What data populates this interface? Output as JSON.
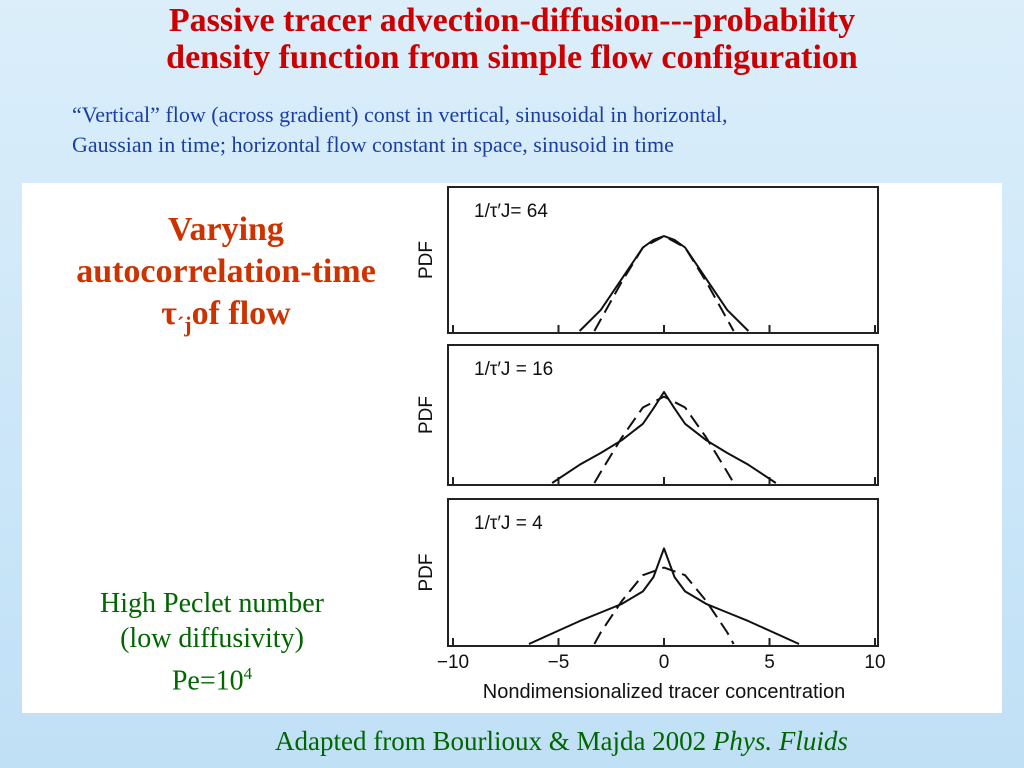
{
  "slide": {
    "title_line1": "Passive tracer advection-diffusion---probability",
    "title_line2": "density function from simple flow configuration",
    "subtitle_line1": "“Vertical” flow (across gradient) const in vertical, sinusoidal in horizontal,",
    "subtitle_line2": "Gaussian in time; horizontal flow constant in space, sinusoid in time",
    "left_heading_line1": "Varying",
    "left_heading_line2": "autocorrelation-time",
    "left_heading_tau": "τ",
    "left_heading_sub": "´j",
    "left_heading_tail": "of flow",
    "note_line1": "High Peclet number",
    "note_line2": "(low diffusivity)",
    "note_line3_base": "Pe=10",
    "note_line3_exp": "4",
    "footer_text": "Adapted from Bourlioux & Majda 2002 ",
    "footer_italic": "Phys. Fluids"
  },
  "chart_data": {
    "type": "line",
    "xlabel": "Nondimensionalized tracer concentration",
    "ylabel": "PDF",
    "xlim": [
      -10,
      10
    ],
    "xticks": [
      -10,
      -5,
      0,
      5,
      10
    ],
    "panels": [
      {
        "label": "1/τ′J= 64",
        "series": [
          {
            "style": "solid",
            "x": [
              -4,
              -3,
              -2,
              -1,
              -0.5,
              0,
              0.5,
              1,
              2,
              3,
              4
            ],
            "y": [
              0.0,
              0.22,
              0.55,
              0.88,
              0.96,
              1.0,
              0.96,
              0.88,
              0.55,
              0.22,
              0.0
            ]
          },
          {
            "style": "dashed",
            "x": [
              -3.3,
              -3,
              -2,
              -1,
              0,
              1,
              2,
              3,
              3.3
            ],
            "y": [
              0.0,
              0.12,
              0.52,
              0.88,
              1.0,
              0.88,
              0.52,
              0.12,
              0.0
            ]
          }
        ]
      },
      {
        "label": "1/τ′J = 16",
        "series": [
          {
            "style": "solid",
            "x": [
              -5.3,
              -4,
              -3,
              -2,
              -1,
              -0.5,
              0,
              0.5,
              1,
              2,
              3,
              4,
              5.3
            ],
            "y": [
              0.0,
              0.2,
              0.33,
              0.47,
              0.65,
              0.82,
              1.0,
              0.82,
              0.65,
              0.47,
              0.33,
              0.2,
              0.0
            ]
          },
          {
            "style": "dashed",
            "x": [
              -3.3,
              -3,
              -2,
              -1,
              0,
              1,
              2,
              3,
              3.3
            ],
            "y": [
              0.0,
              0.12,
              0.5,
              0.83,
              0.95,
              0.83,
              0.5,
              0.12,
              0.0
            ]
          }
        ]
      },
      {
        "label": "1/τ′J = 4",
        "series": [
          {
            "style": "solid",
            "x": [
              -6.4,
              -5,
              -4,
              -3,
              -2,
              -1,
              -0.5,
              0,
              0.5,
              1,
              2,
              3,
              4,
              5,
              6.4
            ],
            "y": [
              0.0,
              0.14,
              0.24,
              0.33,
              0.42,
              0.55,
              0.7,
              1.0,
              0.7,
              0.55,
              0.42,
              0.33,
              0.24,
              0.14,
              0.0
            ]
          },
          {
            "style": "dashed",
            "x": [
              -3.3,
              -3,
              -2,
              -1,
              0,
              1,
              2,
              3,
              3.3
            ],
            "y": [
              0.0,
              0.12,
              0.45,
              0.72,
              0.8,
              0.72,
              0.45,
              0.12,
              0.0
            ]
          }
        ]
      }
    ]
  }
}
